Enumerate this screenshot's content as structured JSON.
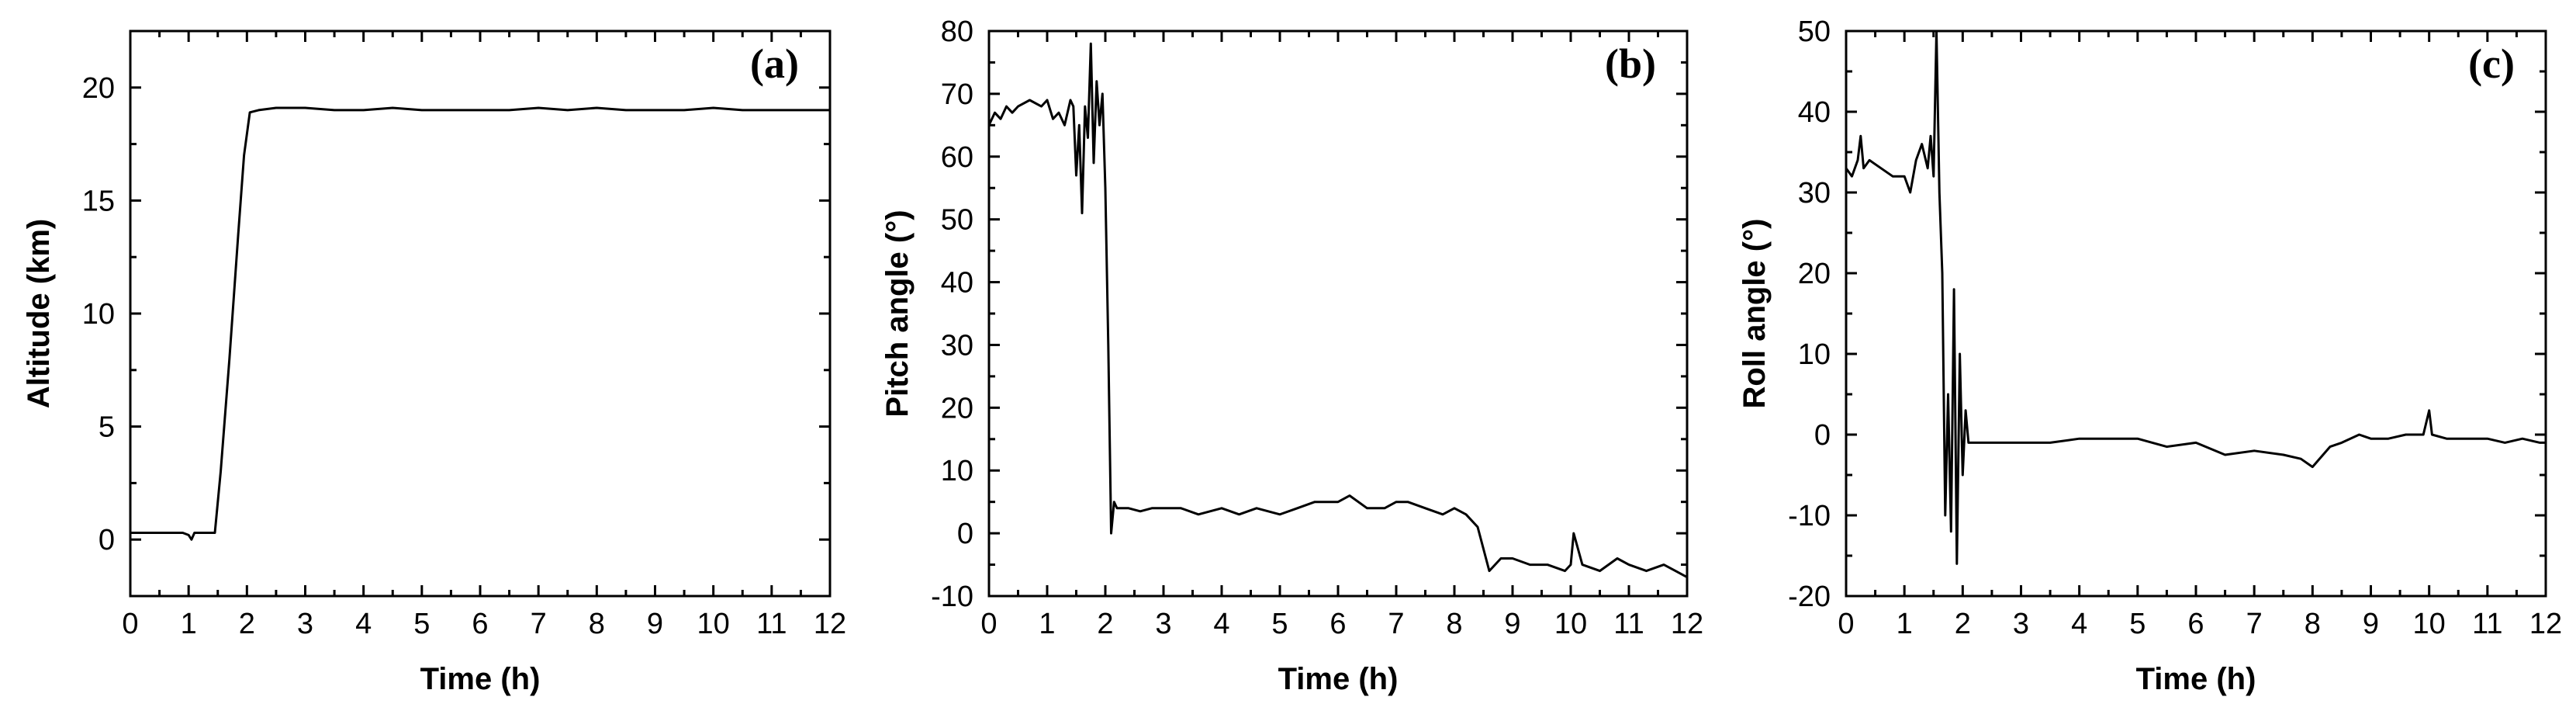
{
  "chart_data": [
    {
      "type": "line",
      "panel_label": "(a)",
      "xlabel": "Time (h)",
      "ylabel": "Altitude (km)",
      "xlim": [
        0,
        12
      ],
      "ylim": [
        -2.5,
        22.5
      ],
      "xticks": [
        "0",
        "1",
        "2",
        "3",
        "4",
        "5",
        "6",
        "7",
        "8",
        "9",
        "10",
        "11",
        "12"
      ],
      "yticks": [
        "0",
        "5",
        "10",
        "15",
        "20"
      ],
      "ytick_values": [
        0,
        5,
        10,
        15,
        20
      ],
      "grid": false,
      "series": [
        {
          "x": [
            0,
            0.5,
            0.9,
            1.0,
            1.05,
            1.1,
            1.3,
            1.45,
            1.55,
            1.7,
            1.85,
            1.95,
            2.05,
            2.2,
            2.5,
            3,
            3.5,
            4,
            4.5,
            5,
            5.5,
            6,
            6.5,
            7,
            7.5,
            8,
            8.5,
            9,
            9.5,
            10,
            10.5,
            11,
            11.5,
            12
          ],
          "y": [
            0.3,
            0.3,
            0.3,
            0.2,
            0.0,
            0.3,
            0.3,
            0.3,
            3.0,
            8.0,
            13.5,
            17.0,
            18.9,
            19.0,
            19.1,
            19.1,
            19.0,
            19.0,
            19.1,
            19.0,
            19.0,
            19.0,
            19.0,
            19.1,
            19.0,
            19.1,
            19.0,
            19.0,
            19.0,
            19.1,
            19.0,
            19.0,
            19.0,
            19.0
          ]
        }
      ]
    },
    {
      "type": "line",
      "panel_label": "(b)",
      "xlabel": "Time (h)",
      "ylabel": "Pitch angle (°)",
      "xlim": [
        0,
        12
      ],
      "ylim": [
        -10,
        80
      ],
      "xticks": [
        "0",
        "1",
        "2",
        "3",
        "4",
        "5",
        "6",
        "7",
        "8",
        "9",
        "10",
        "11",
        "12"
      ],
      "yticks": [
        "-10",
        "0",
        "10",
        "20",
        "30",
        "40",
        "50",
        "60",
        "70",
        "80"
      ],
      "ytick_values": [
        -10,
        0,
        10,
        20,
        30,
        40,
        50,
        60,
        70,
        80
      ],
      "grid": false,
      "series": [
        {
          "x": [
            0,
            0.1,
            0.2,
            0.3,
            0.4,
            0.5,
            0.7,
            0.9,
            1.0,
            1.1,
            1.2,
            1.3,
            1.4,
            1.45,
            1.5,
            1.55,
            1.6,
            1.65,
            1.7,
            1.75,
            1.8,
            1.85,
            1.9,
            1.95,
            2.0,
            2.05,
            2.1,
            2.15,
            2.2,
            2.4,
            2.6,
            2.8,
            3.0,
            3.3,
            3.6,
            4.0,
            4.3,
            4.6,
            5.0,
            5.3,
            5.6,
            6.0,
            6.2,
            6.5,
            6.8,
            7.0,
            7.2,
            7.5,
            7.8,
            8.0,
            8.2,
            8.4,
            8.6,
            8.8,
            9.0,
            9.3,
            9.6,
            9.9,
            10.0,
            10.05,
            10.2,
            10.5,
            10.8,
            11.0,
            11.3,
            11.6,
            11.8,
            12.0
          ],
          "y": [
            65,
            67,
            66,
            68,
            67,
            68,
            69,
            68,
            69,
            66,
            67,
            65,
            69,
            68,
            57,
            65,
            51,
            68,
            63,
            78,
            59,
            72,
            65,
            70,
            55,
            30,
            0,
            5,
            4,
            4,
            3.5,
            4,
            4,
            4,
            3,
            4,
            3,
            4,
            3,
            4,
            5,
            5,
            6,
            4,
            4,
            5,
            5,
            4,
            3,
            4,
            3,
            1,
            -6,
            -4,
            -4,
            -5,
            -5,
            -6,
            -5,
            0,
            -5,
            -6,
            -4,
            -5,
            -6,
            -5,
            -6,
            -7
          ]
        }
      ]
    },
    {
      "type": "line",
      "panel_label": "(c)",
      "xlabel": "Time (h)",
      "ylabel": "Roll angle (°)",
      "xlim": [
        0,
        12
      ],
      "ylim": [
        -20,
        50
      ],
      "xticks": [
        "0",
        "1",
        "2",
        "3",
        "4",
        "5",
        "6",
        "7",
        "8",
        "9",
        "10",
        "11",
        "12"
      ],
      "yticks": [
        "-20",
        "-10",
        "0",
        "10",
        "20",
        "30",
        "40",
        "50"
      ],
      "ytick_values": [
        -20,
        -10,
        0,
        10,
        20,
        30,
        40,
        50
      ],
      "grid": false,
      "series": [
        {
          "x": [
            0,
            0.1,
            0.2,
            0.25,
            0.3,
            0.4,
            0.6,
            0.8,
            1.0,
            1.1,
            1.2,
            1.3,
            1.4,
            1.45,
            1.5,
            1.55,
            1.6,
            1.65,
            1.7,
            1.75,
            1.8,
            1.85,
            1.9,
            1.95,
            2.0,
            2.05,
            2.1,
            2.2,
            2.4,
            2.6,
            2.8,
            3.0,
            3.5,
            4.0,
            4.5,
            5.0,
            5.5,
            6.0,
            6.5,
            7.0,
            7.5,
            7.8,
            8.0,
            8.3,
            8.5,
            8.8,
            9.0,
            9.3,
            9.6,
            9.9,
            10.0,
            10.05,
            10.3,
            10.6,
            11.0,
            11.3,
            11.6,
            11.9,
            12.0
          ],
          "y": [
            33,
            32,
            34,
            37,
            33,
            34,
            33,
            32,
            32,
            30,
            34,
            36,
            33,
            37,
            32,
            50,
            30,
            20,
            -10,
            5,
            -12,
            18,
            -16,
            10,
            -5,
            3,
            -1,
            -1,
            -1,
            -1,
            -1,
            -1,
            -1,
            -0.5,
            -0.5,
            -0.5,
            -1.5,
            -1,
            -2.5,
            -2,
            -2.5,
            -3,
            -4,
            -1.5,
            -1,
            0,
            -0.5,
            -0.5,
            0,
            0,
            3,
            0,
            -0.5,
            -0.5,
            -0.5,
            -1,
            -0.5,
            -1,
            -1
          ]
        }
      ]
    }
  ]
}
